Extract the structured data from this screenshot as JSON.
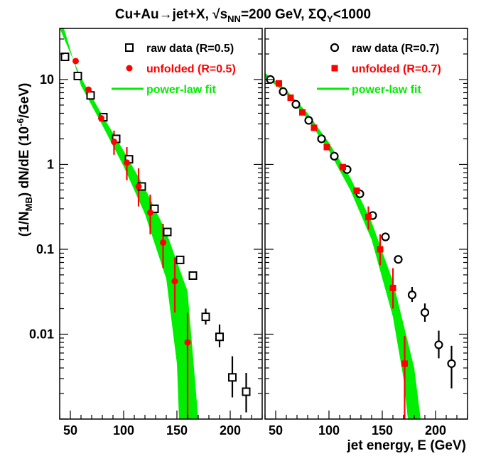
{
  "chart_data": {
    "type": "scatter",
    "title_parts": [
      "Cu+Au→jet+X, ",
      "√",
      "s",
      "NN",
      "=200 GeV, ΣQ",
      "Y",
      "<1000"
    ],
    "ylabel_parts": [
      "(1/N",
      "MB",
      ") dN/dE (10",
      "-6",
      "/GeV)"
    ],
    "xlabel": "jet energy, E (GeV)",
    "y_scale": "log",
    "y_ticks": [
      {
        "v": 10,
        "label": "10"
      },
      {
        "v": 1,
        "label": "1"
      },
      {
        "v": 0.1,
        "label": "0.1"
      },
      {
        "v": 0.01,
        "label": "0.01"
      }
    ],
    "ylim": [
      0.001,
      40
    ],
    "grid": false,
    "colors": {
      "raw": "#000000",
      "unfolded": "#ff0000",
      "fit": "#00ee00"
    },
    "panels": [
      {
        "name": "R=0.5",
        "xlim": [
          40,
          230
        ],
        "x_ticks": [
          50,
          100,
          150,
          200
        ],
        "legend": [
          "raw data (R=0.5)",
          "unfolded (R=0.5)",
          "power-law fit"
        ],
        "raw_marker": "open-square",
        "unfolded_marker": "filled-circle",
        "raw": [
          {
            "x": 45,
            "y": 18.5
          },
          {
            "x": 57,
            "y": 11
          },
          {
            "x": 69,
            "y": 6.5
          },
          {
            "x": 81,
            "y": 3.6
          },
          {
            "x": 93,
            "y": 2.0
          },
          {
            "x": 105,
            "y": 1.15
          },
          {
            "x": 117,
            "y": 0.55
          },
          {
            "x": 129,
            "y": 0.3
          },
          {
            "x": 141,
            "y": 0.16
          },
          {
            "x": 153,
            "y": 0.075
          },
          {
            "x": 165,
            "y": 0.049
          },
          {
            "x": 177,
            "y": 0.016,
            "lo": 0.013,
            "hi": 0.02
          },
          {
            "x": 190,
            "y": 0.0093,
            "lo": 0.007,
            "hi": 0.013
          },
          {
            "x": 202,
            "y": 0.0031,
            "lo": 0.0018,
            "hi": 0.0055
          },
          {
            "x": 215,
            "y": 0.0021,
            "lo": 0.0012,
            "hi": 0.0035
          }
        ],
        "unfolded": [
          {
            "x": 55,
            "y": 16.5
          },
          {
            "x": 67,
            "y": 7.6
          },
          {
            "x": 79,
            "y": 3.5
          },
          {
            "x": 91,
            "y": 1.85,
            "lo": 1.3,
            "hi": 2.5
          },
          {
            "x": 103,
            "y": 1.05,
            "lo": 0.65,
            "hi": 1.6
          },
          {
            "x": 114,
            "y": 0.55,
            "lo": 0.32,
            "hi": 0.9
          },
          {
            "x": 125,
            "y": 0.27,
            "lo": 0.15,
            "hi": 0.44
          },
          {
            "x": 137,
            "y": 0.12,
            "lo": 0.06,
            "hi": 0.2
          },
          {
            "x": 148,
            "y": 0.042,
            "lo": 0.018,
            "hi": 0.08
          },
          {
            "x": 160,
            "y": 0.008,
            "lo": 0.001,
            "hi": 0.018
          }
        ],
        "fit_upper": [
          [
            40,
            40
          ],
          [
            60,
            10.5
          ],
          [
            80,
            3.8
          ],
          [
            100,
            1.45
          ],
          [
            120,
            0.52
          ],
          [
            140,
            0.16
          ],
          [
            160,
            0.032
          ],
          [
            170,
            0.001
          ]
        ],
        "fit_lower": [
          [
            44,
            40
          ],
          [
            60,
            8.5
          ],
          [
            80,
            2.9
          ],
          [
            100,
            0.95
          ],
          [
            120,
            0.26
          ],
          [
            140,
            0.045
          ],
          [
            150,
            0.0045
          ],
          [
            152,
            0.001
          ]
        ]
      },
      {
        "name": "R=0.7",
        "xlim": [
          40,
          230
        ],
        "x_ticks": [
          50,
          100,
          150,
          200
        ],
        "legend": [
          "raw data (R=0.7)",
          "unfolded (R=0.7)",
          "power-law fit"
        ],
        "raw_marker": "open-circle",
        "unfolded_marker": "filled-square",
        "raw": [
          {
            "x": 45,
            "y": 10
          },
          {
            "x": 57,
            "y": 7.2
          },
          {
            "x": 69,
            "y": 5.1
          },
          {
            "x": 81,
            "y": 3.3
          },
          {
            "x": 93,
            "y": 2.0
          },
          {
            "x": 105,
            "y": 1.25
          },
          {
            "x": 117,
            "y": 0.87
          },
          {
            "x": 129,
            "y": 0.45
          },
          {
            "x": 141,
            "y": 0.25
          },
          {
            "x": 153,
            "y": 0.14
          },
          {
            "x": 165,
            "y": 0.076
          },
          {
            "x": 178,
            "y": 0.029,
            "lo": 0.024,
            "hi": 0.036
          },
          {
            "x": 190,
            "y": 0.018,
            "lo": 0.014,
            "hi": 0.023
          },
          {
            "x": 203,
            "y": 0.0075,
            "lo": 0.0052,
            "hi": 0.011
          },
          {
            "x": 215,
            "y": 0.0045,
            "lo": 0.0023,
            "hi": 0.0073
          }
        ],
        "unfolded": [
          {
            "x": 53,
            "y": 9
          },
          {
            "x": 64,
            "y": 6.1
          },
          {
            "x": 75,
            "y": 4.1
          },
          {
            "x": 86,
            "y": 2.7
          },
          {
            "x": 98,
            "y": 1.6
          },
          {
            "x": 113,
            "y": 0.93
          },
          {
            "x": 126,
            "y": 0.49
          },
          {
            "x": 137,
            "y": 0.24,
            "lo": 0.17,
            "hi": 0.32
          },
          {
            "x": 148,
            "y": 0.1,
            "lo": 0.065,
            "hi": 0.15
          },
          {
            "x": 160,
            "y": 0.035,
            "lo": 0.02,
            "hi": 0.06
          },
          {
            "x": 171,
            "y": 0.0045,
            "lo": 0.001,
            "hi": 0.0095
          }
        ],
        "fit_upper": [
          [
            40,
            12
          ],
          [
            60,
            7.5
          ],
          [
            80,
            4.0
          ],
          [
            100,
            1.8
          ],
          [
            120,
            0.7
          ],
          [
            140,
            0.21
          ],
          [
            160,
            0.042
          ],
          [
            180,
            0.004
          ],
          [
            186,
            0.001
          ]
        ],
        "fit_lower": [
          [
            40,
            10.8
          ],
          [
            60,
            6.8
          ],
          [
            80,
            3.4
          ],
          [
            100,
            1.45
          ],
          [
            120,
            0.5
          ],
          [
            140,
            0.13
          ],
          [
            160,
            0.016
          ],
          [
            170,
            0.003
          ],
          [
            174,
            0.001
          ]
        ]
      }
    ]
  }
}
